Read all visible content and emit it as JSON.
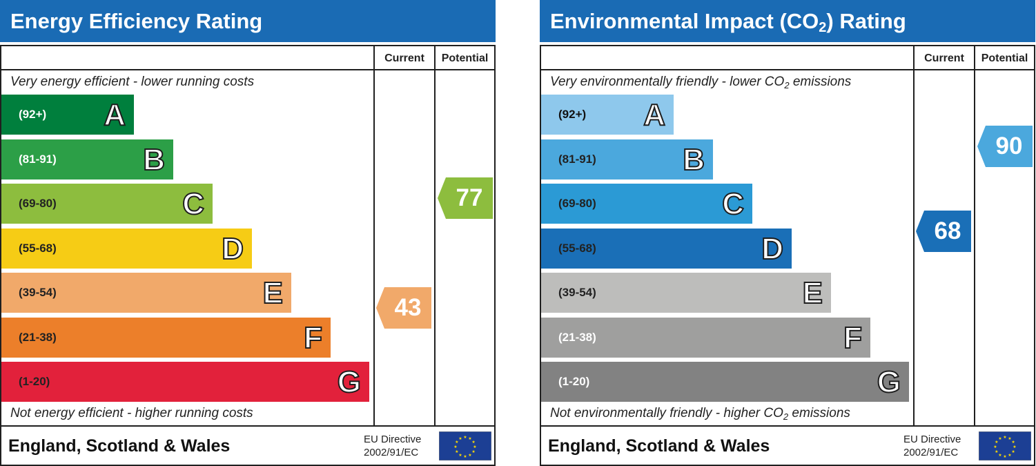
{
  "chart_data": [
    {
      "type": "table",
      "title": "Energy Efficiency Rating",
      "columns": [
        "Current",
        "Potential"
      ],
      "top_note": "Very energy efficient - lower running costs",
      "bottom_note": "Not energy efficient - higher running costs",
      "bands": [
        {
          "letter": "A",
          "range": "(92+)",
          "color": "#007f3d",
          "text_color": "#ffffff"
        },
        {
          "letter": "B",
          "range": "(81-91)",
          "color": "#2c9f47",
          "text_color": "#ffffff"
        },
        {
          "letter": "C",
          "range": "(69-80)",
          "color": "#8dbd3e",
          "text_color": "#222222"
        },
        {
          "letter": "D",
          "range": "(55-68)",
          "color": "#f6cc15",
          "text_color": "#222222"
        },
        {
          "letter": "E",
          "range": "(39-54)",
          "color": "#f1a96a",
          "text_color": "#222222"
        },
        {
          "letter": "F",
          "range": "(21-38)",
          "color": "#ec7f2a",
          "text_color": "#222222"
        },
        {
          "letter": "G",
          "range": "(1-20)",
          "color": "#e2213b",
          "text_color": "#222222"
        }
      ],
      "current": {
        "value": 43,
        "color": "#f1a96a"
      },
      "potential": {
        "value": 77,
        "color": "#8dbd3e"
      },
      "footer": "England, Scotland & Wales",
      "directive_line1": "EU Directive",
      "directive_line2": "2002/91/EC"
    },
    {
      "type": "table",
      "title_main": "Environmental Impact (CO",
      "title_sub": "2",
      "title_end": ") Rating",
      "columns": [
        "Current",
        "Potential"
      ],
      "top_note_main": "Very environmentally friendly - lower CO",
      "top_note_sub": "2",
      "top_note_end": " emissions",
      "bottom_note_main": "Not environmentally friendly - higher CO",
      "bottom_note_sub": "2",
      "bottom_note_end": " emissions",
      "bands": [
        {
          "letter": "A",
          "range": "(92+)",
          "color": "#8ec8ec",
          "text_color": "#111111"
        },
        {
          "letter": "B",
          "range": "(81-91)",
          "color": "#4ba8dd",
          "text_color": "#222222"
        },
        {
          "letter": "C",
          "range": "(69-80)",
          "color": "#2b9ad5",
          "text_color": "#222222"
        },
        {
          "letter": "D",
          "range": "(55-68)",
          "color": "#1a6fb7",
          "text_color": "#222222"
        },
        {
          "letter": "E",
          "range": "(39-54)",
          "color": "#bdbdbb",
          "text_color": "#222222"
        },
        {
          "letter": "F",
          "range": "(21-38)",
          "color": "#9f9f9e",
          "text_color": "#ffffff"
        },
        {
          "letter": "G",
          "range": "(1-20)",
          "color": "#828282",
          "text_color": "#ffffff"
        }
      ],
      "current": {
        "value": 68,
        "color": "#1a6fb7"
      },
      "potential": {
        "value": 90,
        "color": "#4ba8dd"
      },
      "footer": "England, Scotland & Wales",
      "directive_line1": "EU Directive",
      "directive_line2": "2002/91/EC"
    }
  ]
}
